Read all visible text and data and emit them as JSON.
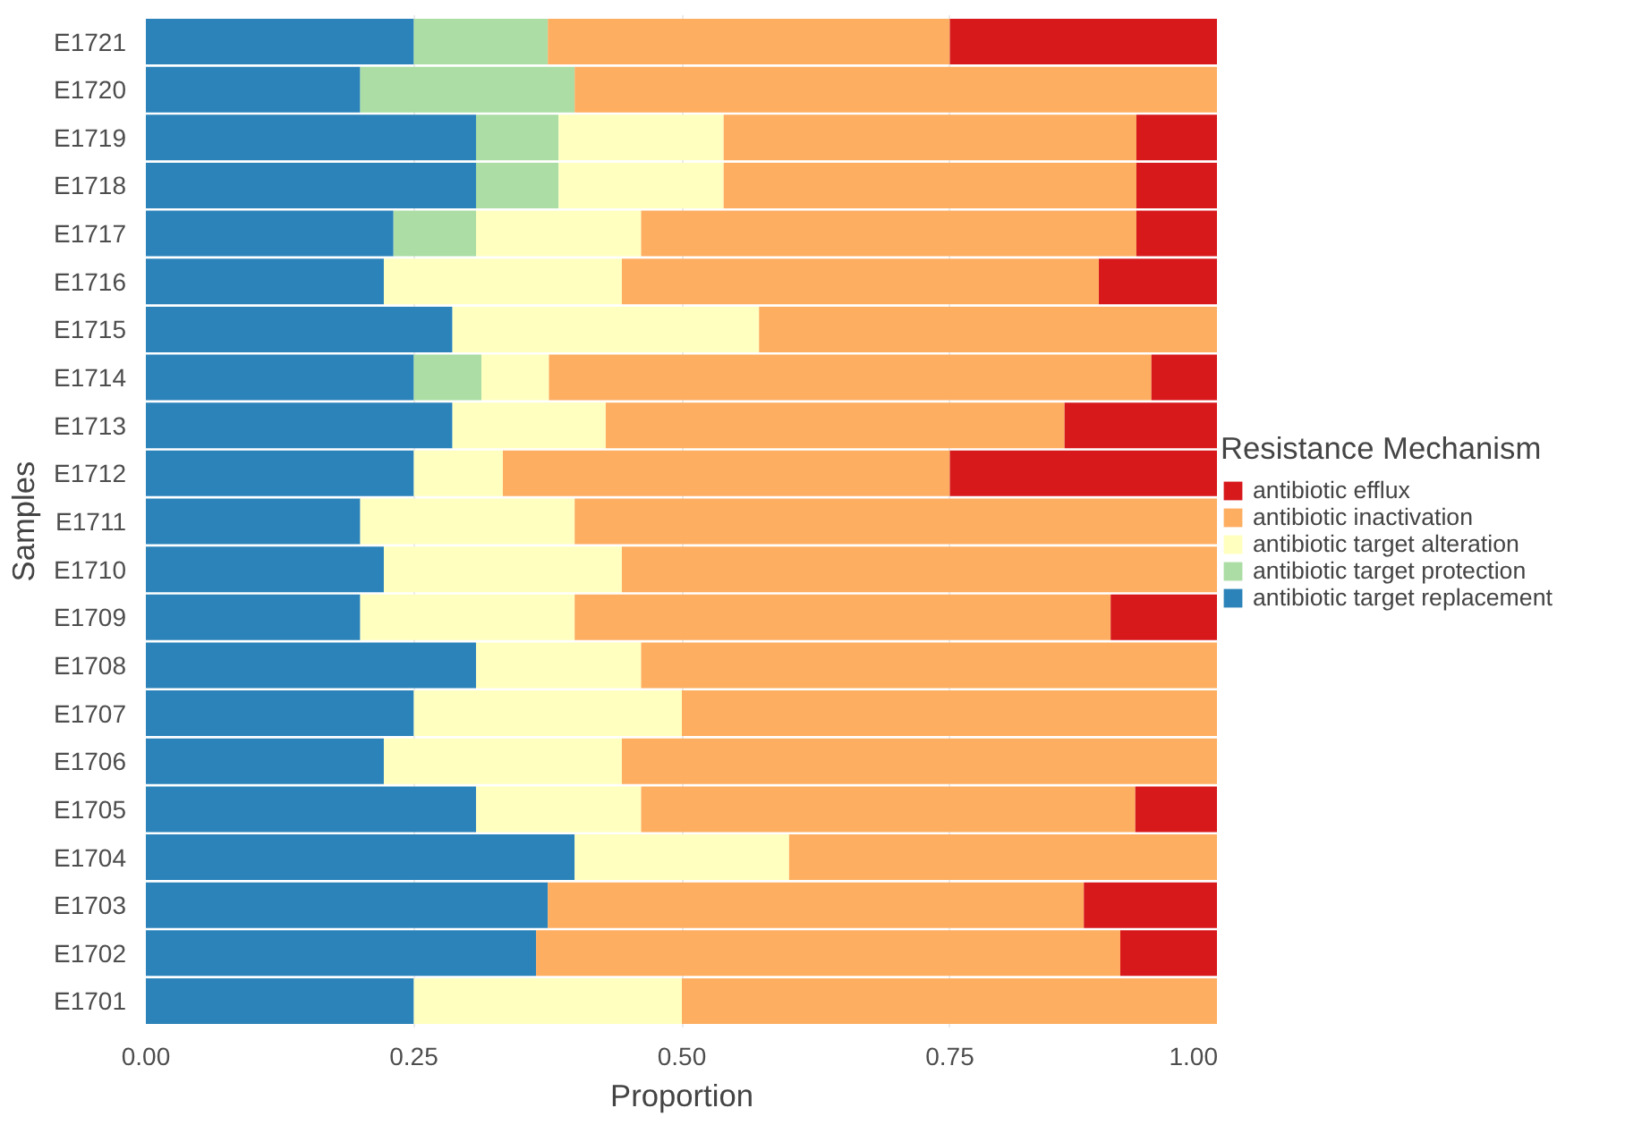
{
  "chart_data": {
    "type": "bar",
    "orientation": "horizontal",
    "stacked": true,
    "xlabel": "Proportion",
    "ylabel": "Samples",
    "legend_title": "Resistance Mechanism",
    "categories": [
      "E1721",
      "E1720",
      "E1719",
      "E1718",
      "E1717",
      "E1716",
      "E1715",
      "E1714",
      "E1713",
      "E1712",
      "E1711",
      "E1710",
      "E1709",
      "E1708",
      "E1707",
      "E1706",
      "E1705",
      "E1704",
      "E1703",
      "E1702",
      "E1701"
    ],
    "series": [
      {
        "name": "antibiotic target replacement",
        "color": "#2b83ba",
        "values": [
          0.25,
          0.2,
          0.308,
          0.308,
          0.231,
          0.222,
          0.286,
          0.25,
          0.286,
          0.25,
          0.2,
          0.222,
          0.2,
          0.308,
          0.25,
          0.222,
          0.308,
          0.4,
          0.375,
          0.364,
          0.25
        ]
      },
      {
        "name": "antibiotic target protection",
        "color": "#abdda4",
        "values": [
          0.125,
          0.2,
          0.077,
          0.077,
          0.077,
          0,
          0,
          0.063,
          0,
          0,
          0,
          0,
          0,
          0,
          0,
          0,
          0,
          0,
          0,
          0,
          0
        ]
      },
      {
        "name": "antibiotic target alteration",
        "color": "#ffffbf",
        "values": [
          0,
          0,
          0.154,
          0.154,
          0.154,
          0.222,
          0.286,
          0.063,
          0.143,
          0.083,
          0.2,
          0.222,
          0.2,
          0.154,
          0.25,
          0.222,
          0.154,
          0.2,
          0,
          0,
          0.25
        ]
      },
      {
        "name": "antibiotic inactivation",
        "color": "#fdae61",
        "values": [
          0.375,
          0.6,
          0.385,
          0.385,
          0.462,
          0.445,
          0.428,
          0.562,
          0.428,
          0.417,
          0.6,
          0.556,
          0.5,
          0.538,
          0.5,
          0.556,
          0.461,
          0.4,
          0.5,
          0.545,
          0.5
        ]
      },
      {
        "name": "antibiotic efflux",
        "color": "#d7191c",
        "values": [
          0.25,
          0,
          0.077,
          0.077,
          0.077,
          0.111,
          0,
          0.062,
          0.143,
          0.25,
          0,
          0,
          0.1,
          0,
          0,
          0,
          0.077,
          0,
          0.125,
          0.091,
          0
        ]
      }
    ],
    "xlim": [
      0,
      1
    ],
    "xticks": [
      {
        "value": 0,
        "label": "0.00"
      },
      {
        "value": 0.25,
        "label": "0.25"
      },
      {
        "value": 0.5,
        "label": "0.50"
      },
      {
        "value": 0.75,
        "label": "0.75"
      },
      {
        "value": 1,
        "label": "1.00"
      }
    ],
    "grid": "x",
    "legend": "right"
  }
}
